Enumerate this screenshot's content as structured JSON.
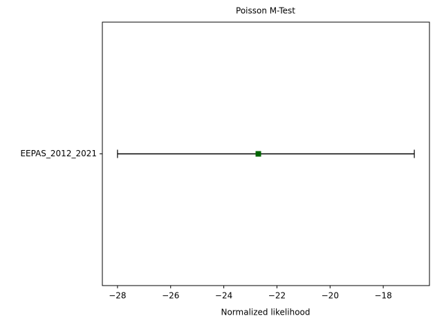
{
  "chart_data": {
    "type": "errorbar",
    "title": "Poisson M-Test",
    "x_label": "Normalized likelihood",
    "categories": [
      "EEPAS_2012_2021"
    ],
    "series": [
      {
        "color": "#006400",
        "values": [
          -22.7
        ],
        "lower": [
          -28.0
        ],
        "upper": [
          -16.83
        ]
      }
    ],
    "xlim": [
      -28.57,
      -16.26
    ],
    "xticks": [
      {
        "value": -28,
        "label": "−28"
      },
      {
        "value": -26,
        "label": "−26"
      },
      {
        "value": -24,
        "label": "−24"
      },
      {
        "value": -22,
        "label": "−22"
      },
      {
        "value": -20,
        "label": "−20"
      },
      {
        "value": -18,
        "label": "−18"
      }
    ],
    "grid": false
  }
}
